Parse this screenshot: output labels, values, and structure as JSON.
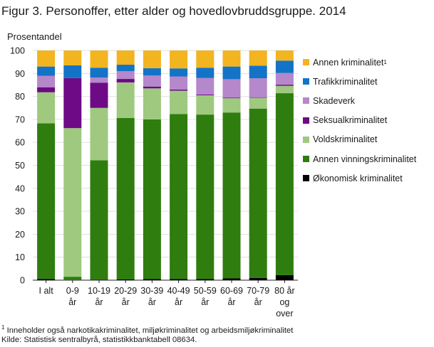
{
  "title": "Figur 3. Personoffer, etter alder og hovedlovbruddsgruppe. 2014",
  "footnote": {
    "marker": "1",
    "text": " Inneholder også narkotikakriminalitet, miljøkriminalitet og arbeidsmiljøkriminalitet",
    "source": "Kilde: Statistisk sentralbyrå, statistikkbanktabell  08634."
  },
  "chart_data": {
    "type": "stacked-bar",
    "ylabel": "Prosentandel",
    "ylim": [
      0,
      100
    ],
    "yticks": [
      0,
      10,
      20,
      30,
      40,
      50,
      60,
      70,
      80,
      90,
      100
    ],
    "grid": true,
    "legend_position": "right",
    "categories": [
      [
        "I alt"
      ],
      [
        "0-9",
        "år"
      ],
      [
        "10-19",
        "år"
      ],
      [
        "20-29",
        "år"
      ],
      [
        "30-39",
        "år"
      ],
      [
        "40-49",
        "år"
      ],
      [
        "50-59",
        "år"
      ],
      [
        "60-69",
        "år"
      ],
      [
        "70-79",
        "år"
      ],
      [
        "80 år",
        "og",
        "over"
      ]
    ],
    "series": [
      {
        "name": "Økonomisk kriminalitet",
        "sup": "",
        "color": "#000000",
        "values": [
          0.5,
          0,
          0.2,
          0.3,
          0.5,
          0.5,
          0.5,
          0.8,
          1.0,
          2.2
        ]
      },
      {
        "name": "Annen vinningskriminalitet",
        "sup": "",
        "color": "#2f7d0f",
        "values": [
          67.8,
          1.5,
          52.0,
          70.3,
          69.5,
          71.8,
          71.6,
          72.2,
          73.7,
          79.2
        ]
      },
      {
        "name": "Voldskriminalitet",
        "sup": "",
        "color": "#9ec97f",
        "values": [
          13.5,
          64.7,
          22.8,
          15.5,
          13.5,
          10.2,
          8.4,
          6.2,
          4.6,
          3.2
        ]
      },
      {
        "name": "Seksualkriminalitet",
        "sup": "",
        "color": "#6e0a85",
        "values": [
          2.2,
          21.8,
          11.0,
          1.5,
          0.8,
          0.5,
          0.3,
          0.3,
          0.2,
          0.5
        ]
      },
      {
        "name": "Skadeverk",
        "sup": "",
        "color": "#b587cb",
        "values": [
          5.0,
          0,
          2.2,
          3.4,
          4.8,
          5.7,
          7.2,
          8.0,
          8.4,
          5.1
        ]
      },
      {
        "name": "Trafikkriminalitet",
        "sup": "",
        "color": "#1373c7",
        "values": [
          4.0,
          5.5,
          4.3,
          2.8,
          3.2,
          3.5,
          4.5,
          5.5,
          5.5,
          5.4
        ]
      },
      {
        "name": "Annen  kriminalitet",
        "sup": "1",
        "color": "#f2b41f",
        "values": [
          7.0,
          6.5,
          7.5,
          6.2,
          7.7,
          7.8,
          7.5,
          7.0,
          6.6,
          4.4
        ]
      }
    ]
  }
}
